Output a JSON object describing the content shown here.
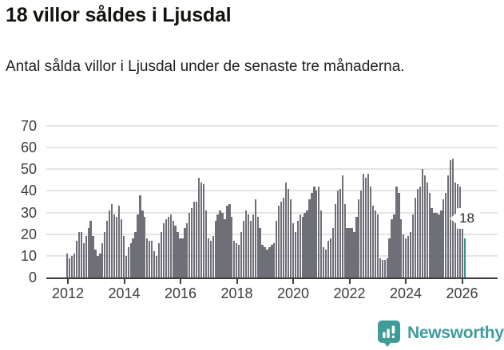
{
  "header": {
    "title": "18 villor såldes i Ljusdal",
    "subtitle": "Antal sålda villor i Ljusdal under de senaste tre månaderna."
  },
  "chart_data": {
    "type": "bar",
    "title": "18 villor såldes i Ljusdal",
    "xlabel": "",
    "ylabel": "",
    "x_start": "2012-01",
    "frequency": "monthly",
    "ylim": [
      0,
      70
    ],
    "yticks": [
      0,
      10,
      20,
      30,
      40,
      50,
      60,
      70
    ],
    "xticklabels": [
      "2012",
      "2014",
      "2016",
      "2018",
      "2020",
      "2022",
      "2024",
      "2026"
    ],
    "grid": "horizontal",
    "legend": "none",
    "values": [
      11,
      9,
      10,
      11,
      17,
      21,
      21,
      16,
      19,
      23,
      26,
      19,
      13,
      10,
      11,
      16,
      21,
      26,
      31,
      34,
      29,
      28,
      33,
      27,
      19,
      10,
      14,
      16,
      18,
      21,
      29,
      38,
      31,
      28,
      18,
      17,
      17,
      12,
      10,
      16,
      21,
      25,
      27,
      28,
      29,
      26,
      24,
      21,
      18,
      18,
      23,
      25,
      30,
      32,
      35,
      35,
      46,
      44,
      43,
      31,
      18,
      17,
      19,
      26,
      29,
      31,
      30,
      27,
      33,
      34,
      28,
      17,
      16,
      15,
      21,
      26,
      31,
      29,
      26,
      29,
      36,
      28,
      23,
      15,
      14,
      13,
      14,
      15,
      16,
      26,
      33,
      35,
      37,
      44,
      41,
      36,
      25,
      21,
      26,
      29,
      28,
      30,
      31,
      36,
      39,
      42,
      40,
      42,
      31,
      14,
      13,
      17,
      18,
      23,
      34,
      40,
      41,
      47,
      34,
      23,
      23,
      23,
      21,
      28,
      36,
      40,
      48,
      46,
      48,
      42,
      33,
      31,
      29,
      9,
      8,
      8,
      9,
      18,
      27,
      29,
      42,
      39,
      27,
      20,
      18,
      19,
      21,
      29,
      37,
      41,
      42,
      50,
      47,
      44,
      39,
      32,
      30,
      30,
      29,
      31,
      36,
      39,
      47,
      54,
      55,
      44,
      43,
      42,
      30,
      18
    ],
    "highlight_last": true,
    "annotation": {
      "text": "18",
      "target": "last-bar"
    },
    "colors": {
      "bar": "#6f6f78",
      "highlight": "#2f9491",
      "grid": "#e4e4e4",
      "axis": "#404040",
      "tick_text": "#3d3d3d"
    }
  },
  "footer": {
    "brand": "Newsworthy",
    "logo_icon": "newsworthy-speech-bubble-chart-icon",
    "brand_color": "#3f9b9d"
  }
}
